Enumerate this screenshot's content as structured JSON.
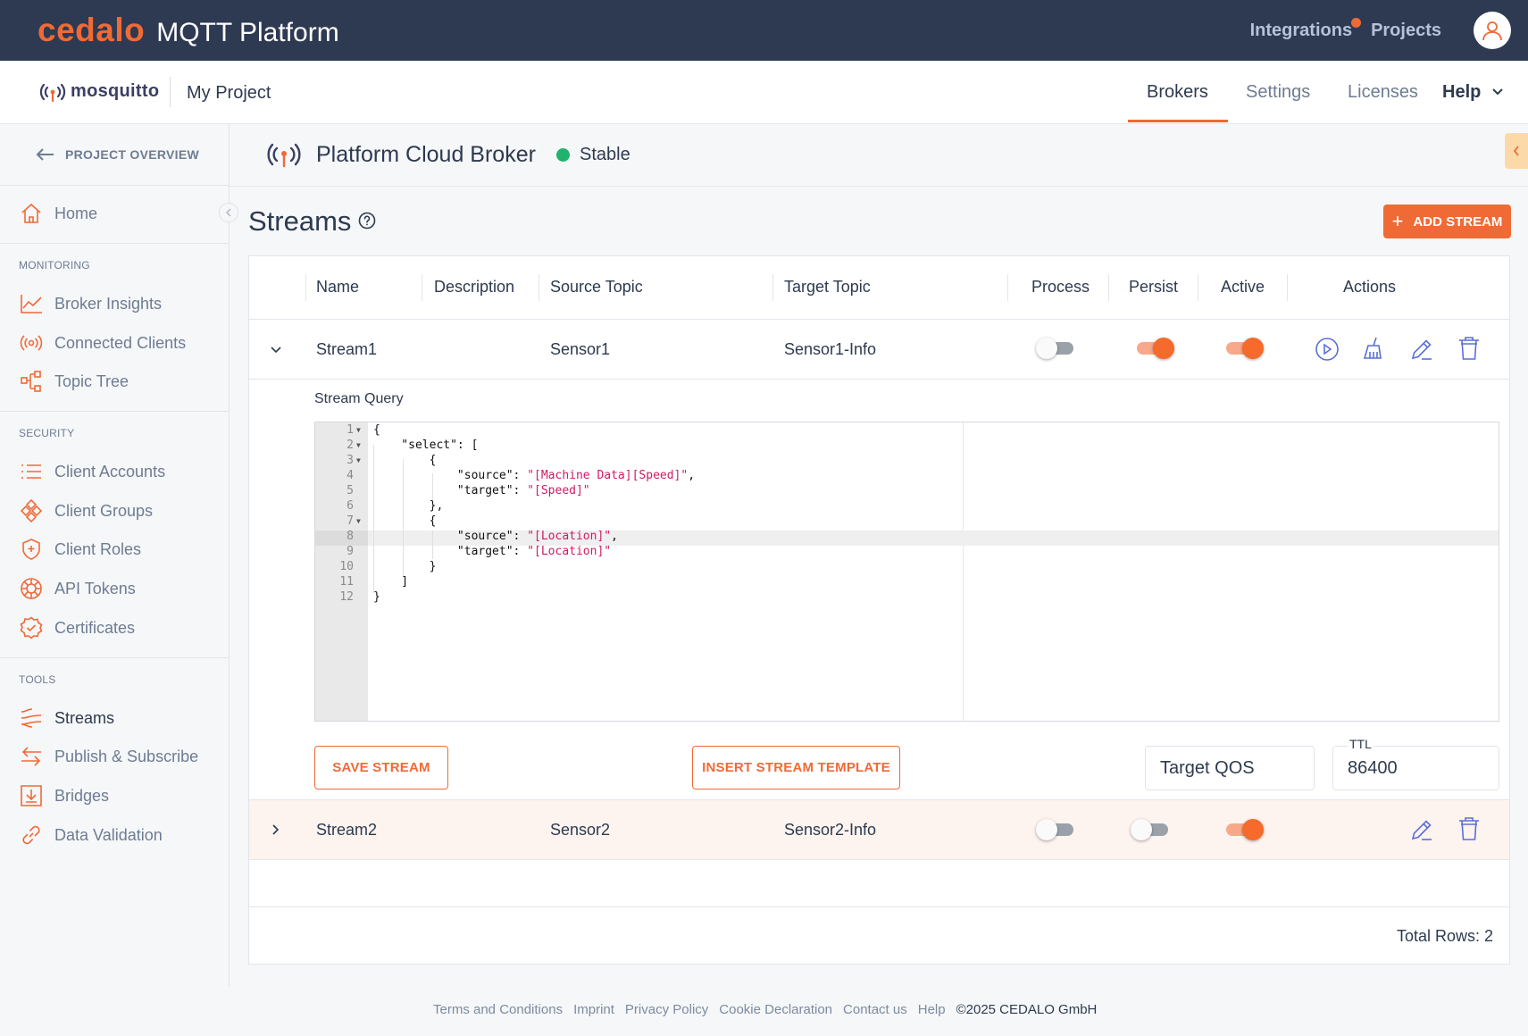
{
  "topbar": {
    "logo": "cedalo",
    "product": "MQTT Platform",
    "links": [
      {
        "label": "Integrations",
        "notification": true
      },
      {
        "label": "Projects"
      }
    ],
    "avatar_icon": "user-icon"
  },
  "subheader": {
    "mosquitto_logo": "mosquitto",
    "project": "My Project",
    "nav": [
      {
        "label": "Brokers",
        "active": true
      },
      {
        "label": "Settings"
      },
      {
        "label": "Licenses"
      },
      {
        "label": "Help"
      }
    ]
  },
  "sidebar": {
    "back_label": "PROJECT OVERVIEW",
    "home": "Home",
    "sections": [
      {
        "title": "MONITORING",
        "items": [
          {
            "label": "Broker Insights",
            "icon": "chart-line-icon"
          },
          {
            "label": "Connected Clients",
            "icon": "broadcast-icon"
          },
          {
            "label": "Topic Tree",
            "icon": "tree-icon"
          }
        ]
      },
      {
        "title": "SECURITY",
        "items": [
          {
            "label": "Client Accounts",
            "icon": "list-icon"
          },
          {
            "label": "Client Groups",
            "icon": "groups-icon"
          },
          {
            "label": "Client Roles",
            "icon": "shield-icon"
          },
          {
            "label": "API Tokens",
            "icon": "token-icon"
          },
          {
            "label": "Certificates",
            "icon": "certificate-icon"
          }
        ]
      },
      {
        "title": "TOOLS",
        "items": [
          {
            "label": "Streams",
            "icon": "streams-icon",
            "active": true
          },
          {
            "label": "Publish & Subscribe",
            "icon": "swap-icon"
          },
          {
            "label": "Bridges",
            "icon": "bridge-icon"
          },
          {
            "label": "Data Validation",
            "icon": "link-icon"
          }
        ]
      }
    ]
  },
  "broker": {
    "name": "Platform Cloud Broker",
    "status": "Stable",
    "status_color": "#21b36b"
  },
  "page": {
    "title": "Streams",
    "add_button": "ADD STREAM"
  },
  "table": {
    "columns": [
      "Name",
      "Description",
      "Source Topic",
      "Target Topic",
      "Process",
      "Persist",
      "Active",
      "Actions"
    ],
    "rows": [
      {
        "name": "Stream1",
        "description": "",
        "source": "Sensor1",
        "target": "Sensor1-Info",
        "process": false,
        "persist": true,
        "active": true,
        "expanded": true
      },
      {
        "name": "Stream2",
        "description": "",
        "source": "Sensor2",
        "target": "Sensor2-Info",
        "process": false,
        "persist": false,
        "active": true,
        "expanded": false
      }
    ],
    "total_rows": "Total Rows: 2"
  },
  "stream_query": {
    "label": "Stream Query",
    "lines": [
      "{",
      "    \"select\": [",
      "        {",
      "            \"source\": \"[Machine Data][Speed]\",",
      "            \"target\": \"[Speed]\"",
      "        },",
      "        {",
      "            \"source\": \"[Location]\",",
      "            \"target\": \"[Location]\"",
      "        }",
      "    ]",
      "}"
    ],
    "active_line": 8,
    "save_button": "SAVE STREAM",
    "template_button": "INSERT STREAM TEMPLATE",
    "target_qos_placeholder": "Target QOS",
    "ttl_label": "TTL",
    "ttl_value": "86400"
  },
  "footer": {
    "links": [
      "Terms and Conditions",
      "Imprint",
      "Privacy Policy",
      "Cookie Declaration",
      "Contact us",
      "Help"
    ],
    "copyright": "©2025 CEDALO GmbH"
  },
  "colors": {
    "accent": "#f06a35",
    "topbar": "#2e3a51",
    "text": "#2d3a4f",
    "muted": "#6d7c92"
  }
}
